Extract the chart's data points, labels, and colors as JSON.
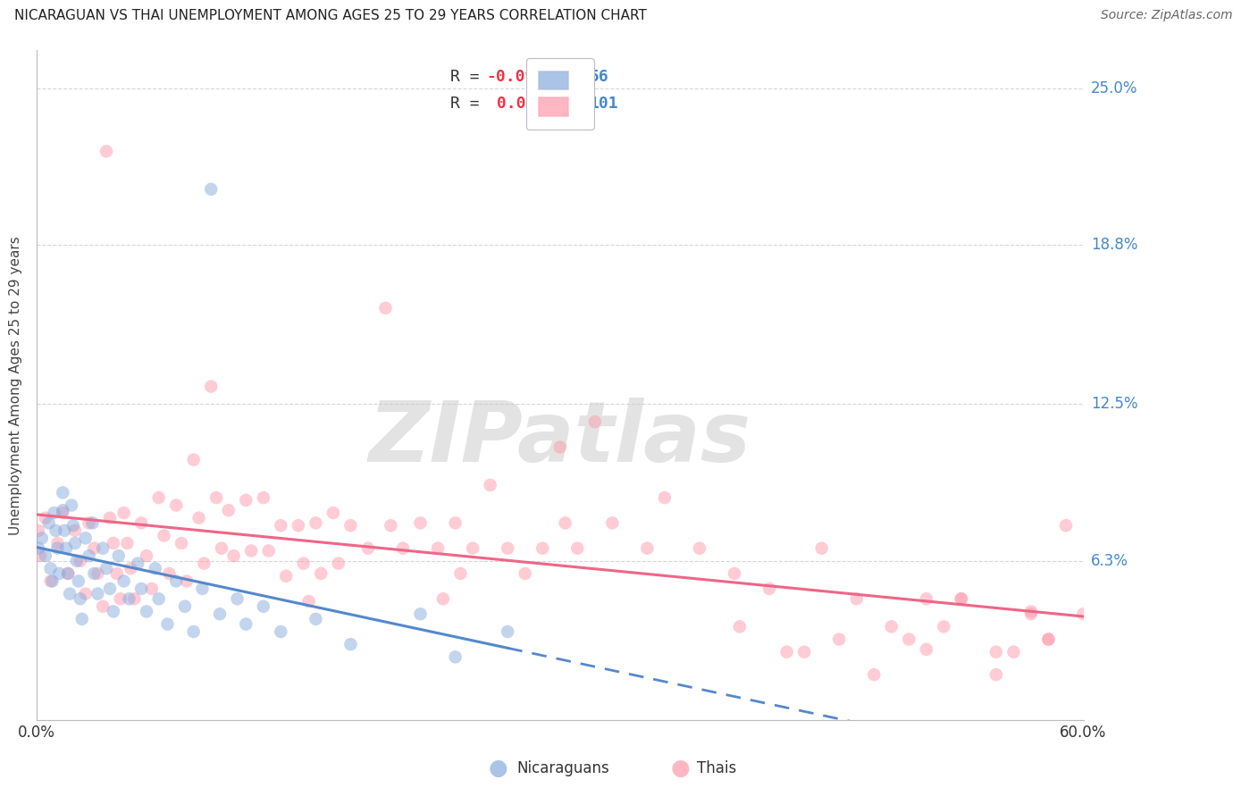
{
  "title": "NICARAGUAN VS THAI UNEMPLOYMENT AMONG AGES 25 TO 29 YEARS CORRELATION CHART",
  "source": "Source: ZipAtlas.com",
  "ylabel": "Unemployment Among Ages 25 to 29 years",
  "xlim": [
    0.0,
    0.6
  ],
  "ylim": [
    0.0,
    0.265
  ],
  "yticks": [
    0.0,
    0.063,
    0.125,
    0.188,
    0.25
  ],
  "ytick_labels": [
    "",
    "6.3%",
    "12.5%",
    "18.8%",
    "25.0%"
  ],
  "xticks": [
    0.0,
    0.12,
    0.24,
    0.36,
    0.48,
    0.6
  ],
  "xtick_labels": [
    "0.0%",
    "",
    "",
    "",
    "",
    "60.0%"
  ],
  "nicaraguan_R": -0.095,
  "nicaraguan_N": 56,
  "thai_R": 0.064,
  "thai_N": 101,
  "blue_color": "#88AADD",
  "pink_color": "#FF99AA",
  "blue_line_color": "#5588CC",
  "pink_line_color": "#EE6688",
  "grid_color": "#CCCCCC",
  "nicaraguan_x": [
    0.001,
    0.003,
    0.005,
    0.007,
    0.008,
    0.009,
    0.01,
    0.011,
    0.012,
    0.013,
    0.015,
    0.015,
    0.016,
    0.017,
    0.018,
    0.019,
    0.02,
    0.021,
    0.022,
    0.023,
    0.024,
    0.025,
    0.026,
    0.028,
    0.03,
    0.032,
    0.033,
    0.035,
    0.038,
    0.04,
    0.042,
    0.044,
    0.047,
    0.05,
    0.053,
    0.058,
    0.06,
    0.063,
    0.068,
    0.07,
    0.075,
    0.08,
    0.085,
    0.09,
    0.095,
    0.1,
    0.105,
    0.115,
    0.12,
    0.13,
    0.14,
    0.16,
    0.18,
    0.22,
    0.24,
    0.27
  ],
  "nicaraguan_y": [
    0.068,
    0.072,
    0.065,
    0.078,
    0.06,
    0.055,
    0.082,
    0.075,
    0.068,
    0.058,
    0.09,
    0.083,
    0.075,
    0.068,
    0.058,
    0.05,
    0.085,
    0.077,
    0.07,
    0.063,
    0.055,
    0.048,
    0.04,
    0.072,
    0.065,
    0.078,
    0.058,
    0.05,
    0.068,
    0.06,
    0.052,
    0.043,
    0.065,
    0.055,
    0.048,
    0.062,
    0.052,
    0.043,
    0.06,
    0.048,
    0.038,
    0.055,
    0.045,
    0.035,
    0.052,
    0.21,
    0.042,
    0.048,
    0.038,
    0.045,
    0.035,
    0.04,
    0.03,
    0.042,
    0.025,
    0.035
  ],
  "thai_x": [
    0.001,
    0.002,
    0.005,
    0.008,
    0.012,
    0.015,
    0.018,
    0.022,
    0.025,
    0.028,
    0.03,
    0.033,
    0.035,
    0.038,
    0.04,
    0.042,
    0.044,
    0.046,
    0.048,
    0.05,
    0.052,
    0.054,
    0.056,
    0.06,
    0.063,
    0.066,
    0.07,
    0.073,
    0.076,
    0.08,
    0.083,
    0.086,
    0.09,
    0.093,
    0.096,
    0.1,
    0.103,
    0.106,
    0.11,
    0.113,
    0.12,
    0.123,
    0.13,
    0.133,
    0.14,
    0.143,
    0.15,
    0.153,
    0.156,
    0.16,
    0.163,
    0.17,
    0.173,
    0.18,
    0.19,
    0.2,
    0.203,
    0.21,
    0.22,
    0.23,
    0.233,
    0.24,
    0.243,
    0.25,
    0.26,
    0.27,
    0.28,
    0.29,
    0.3,
    0.303,
    0.31,
    0.32,
    0.33,
    0.35,
    0.36,
    0.38,
    0.4,
    0.403,
    0.42,
    0.43,
    0.45,
    0.47,
    0.5,
    0.51,
    0.52,
    0.53,
    0.55,
    0.57,
    0.58,
    0.59,
    0.6,
    0.44,
    0.46,
    0.48,
    0.49,
    0.51,
    0.53,
    0.55,
    0.56,
    0.57,
    0.58
  ],
  "thai_y": [
    0.075,
    0.065,
    0.08,
    0.055,
    0.07,
    0.082,
    0.058,
    0.075,
    0.063,
    0.05,
    0.078,
    0.068,
    0.058,
    0.045,
    0.225,
    0.08,
    0.07,
    0.058,
    0.048,
    0.082,
    0.07,
    0.06,
    0.048,
    0.078,
    0.065,
    0.052,
    0.088,
    0.073,
    0.058,
    0.085,
    0.07,
    0.055,
    0.103,
    0.08,
    0.062,
    0.132,
    0.088,
    0.068,
    0.083,
    0.065,
    0.087,
    0.067,
    0.088,
    0.067,
    0.077,
    0.057,
    0.077,
    0.062,
    0.047,
    0.078,
    0.058,
    0.082,
    0.062,
    0.077,
    0.068,
    0.163,
    0.077,
    0.068,
    0.078,
    0.068,
    0.048,
    0.078,
    0.058,
    0.068,
    0.093,
    0.068,
    0.058,
    0.068,
    0.108,
    0.078,
    0.068,
    0.118,
    0.078,
    0.068,
    0.088,
    0.068,
    0.058,
    0.037,
    0.052,
    0.027,
    0.068,
    0.048,
    0.032,
    0.048,
    0.037,
    0.048,
    0.027,
    0.043,
    0.032,
    0.077,
    0.042,
    0.027,
    0.032,
    0.018,
    0.037,
    0.028,
    0.048,
    0.018,
    0.027,
    0.042,
    0.032
  ]
}
